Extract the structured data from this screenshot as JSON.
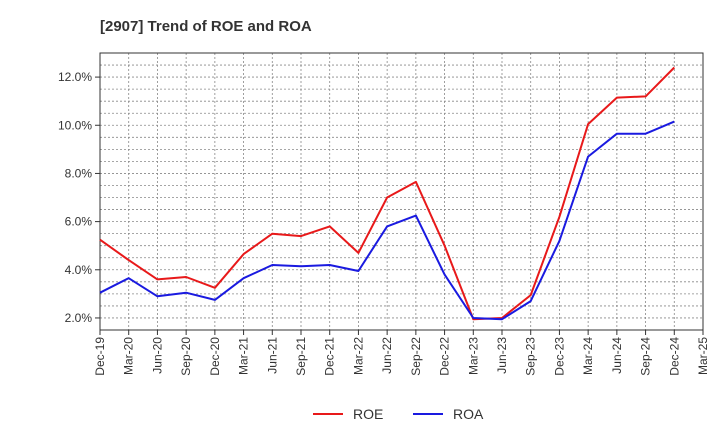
{
  "chart_data": {
    "type": "line",
    "title": "[2907]  Trend of ROE and ROA",
    "xlabel": "",
    "ylabel": "",
    "categories": [
      "Dec-19",
      "Mar-20",
      "Jun-20",
      "Sep-20",
      "Dec-20",
      "Mar-21",
      "Jun-21",
      "Sep-21",
      "Dec-21",
      "Mar-22",
      "Jun-22",
      "Sep-22",
      "Dec-22",
      "Mar-23",
      "Jun-23",
      "Sep-23",
      "Dec-23",
      "Mar-24",
      "Jun-24",
      "Sep-24",
      "Dec-24",
      "Mar-25"
    ],
    "y_ticks": [
      2.0,
      4.0,
      6.0,
      8.0,
      10.0,
      12.0
    ],
    "y_tick_labels": [
      "2.0%",
      "4.0%",
      "6.0%",
      "8.0%",
      "10.0%",
      "12.0%"
    ],
    "ylim": [
      1.5,
      13.0
    ],
    "grid": true,
    "legend_position": "bottom",
    "series": [
      {
        "name": "ROE",
        "color": "#e8191a",
        "values": [
          5.25,
          4.4,
          3.6,
          3.7,
          3.25,
          4.65,
          5.5,
          5.4,
          5.8,
          4.7,
          7.0,
          7.65,
          5.0,
          1.95,
          2.0,
          2.95,
          6.2,
          10.05,
          11.15,
          11.2,
          12.4,
          null
        ]
      },
      {
        "name": "ROA",
        "color": "#1a1ae0",
        "values": [
          3.05,
          3.65,
          2.9,
          3.05,
          2.75,
          3.65,
          4.2,
          4.15,
          4.2,
          3.95,
          5.8,
          6.25,
          3.8,
          2.0,
          1.95,
          2.7,
          5.2,
          8.7,
          9.65,
          9.65,
          10.15,
          null
        ]
      }
    ]
  }
}
